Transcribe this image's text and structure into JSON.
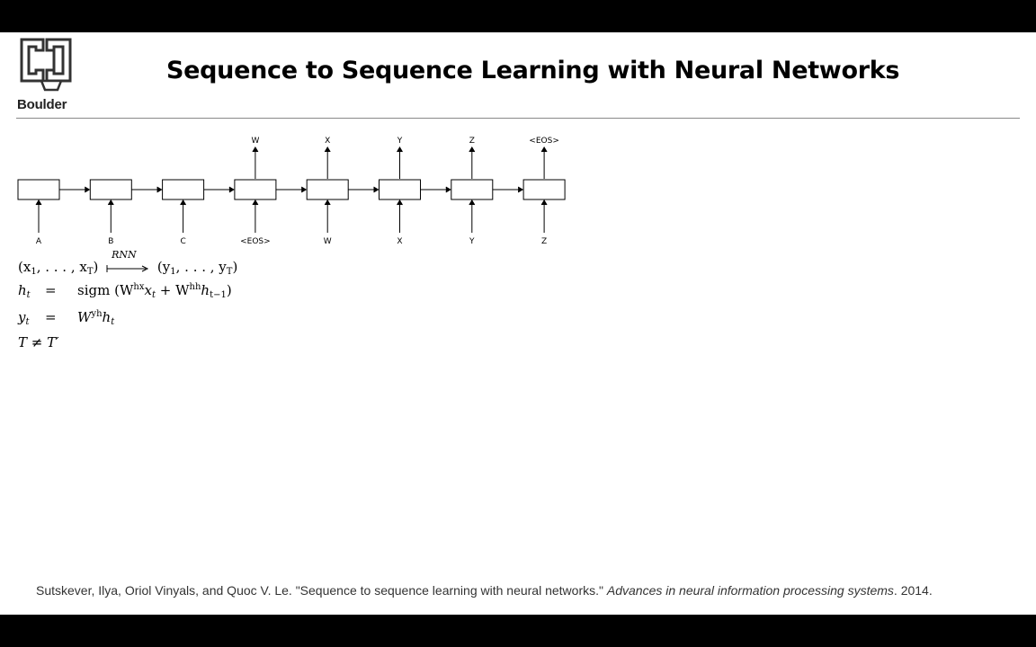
{
  "logo": {
    "text": "Boulder",
    "color": "#333333"
  },
  "title": "Sequence to Sequence Learning with Neural Networks",
  "diagram": {
    "inputs": [
      "A",
      "B",
      "C",
      "<EOS>",
      "W",
      "X",
      "Y",
      "Z"
    ],
    "outputs": [
      "",
      "",
      "",
      "W",
      "X",
      "Y",
      "Z",
      "<EOS>"
    ]
  },
  "equations": {
    "mapping": {
      "lhs": "(x",
      "lhs_sub1": "1",
      "lhs_mid": ", . . . , x",
      "lhs_subT": "T",
      "lhs_end": ")",
      "arrow_label": "RNN",
      "rhs": "(y",
      "rhs_sub1": "1",
      "rhs_mid": ", . . . , y",
      "rhs_subT": "T",
      "rhs_end": ")"
    },
    "h": {
      "lhs": "h",
      "lhs_sub": "t",
      "eq": "=",
      "fn": "sigm",
      "open": "(W",
      "sup1": "hx",
      "x": "x",
      "x_sub": "t",
      "plus": " + W",
      "sup2": "hh",
      "h": "h",
      "h_sub": "t−1",
      "close": ")"
    },
    "y": {
      "lhs": "y",
      "lhs_sub": "t",
      "eq": "=",
      "W": "W",
      "sup": "yh",
      "h": "h",
      "h_sub": "t"
    },
    "neq": "T ≠ T′"
  },
  "citation": {
    "authors": "Sutskever, Ilya, Oriol Vinyals, and Quoc V. Le. \"Sequence to sequence learning with neural networks.\" ",
    "venue": "Advances in neural information processing systems",
    "year": ". 2014."
  }
}
